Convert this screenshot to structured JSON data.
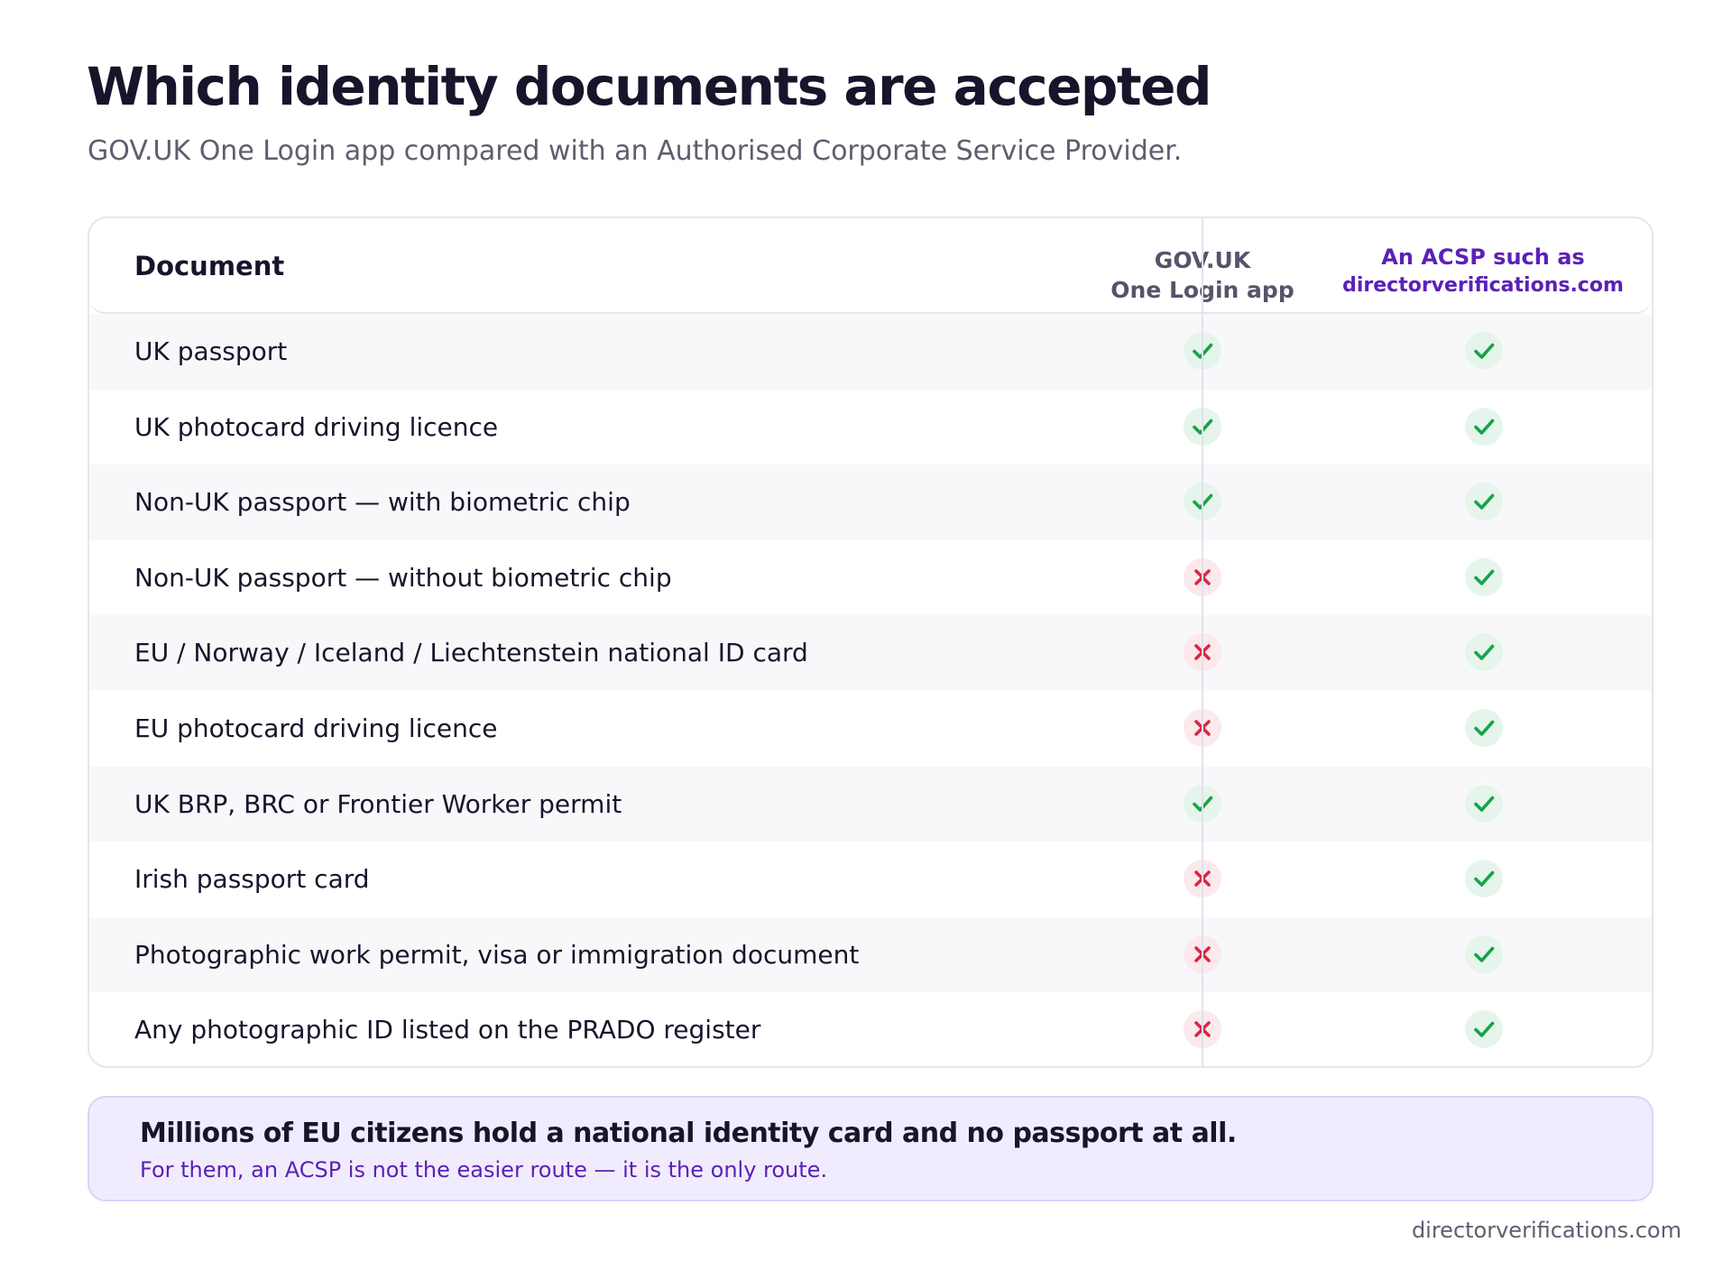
{
  "title": "Which identity documents are accepted",
  "subtitle": "GOV.UK One Login app compared with an Authorised Corporate Service Provider.",
  "table": {
    "headers": {
      "document": "Document",
      "gov_line1": "GOV.UK",
      "gov_line2": "One Login app",
      "acsp_line1": "An ACSP such as",
      "acsp_line2": "directorverifications.com"
    },
    "rows": [
      {
        "document": "UK passport",
        "gov": "yes",
        "acsp": "yes"
      },
      {
        "document": "UK photocard driving licence",
        "gov": "yes",
        "acsp": "yes"
      },
      {
        "document": "Non-UK passport — with biometric chip",
        "gov": "yes",
        "acsp": "yes"
      },
      {
        "document": "Non-UK passport — without biometric chip",
        "gov": "no",
        "acsp": "yes"
      },
      {
        "document": "EU / Norway / Iceland / Liechtenstein national ID card",
        "gov": "no",
        "acsp": "yes"
      },
      {
        "document": "EU photocard driving licence",
        "gov": "no",
        "acsp": "yes"
      },
      {
        "document": "UK BRP, BRC or Frontier Worker permit",
        "gov": "yes",
        "acsp": "yes"
      },
      {
        "document": "Irish passport card",
        "gov": "no",
        "acsp": "yes"
      },
      {
        "document": "Photographic work permit, visa or immigration document",
        "gov": "no",
        "acsp": "yes"
      },
      {
        "document": "Any photographic ID listed on the PRADO register",
        "gov": "no",
        "acsp": "yes"
      }
    ]
  },
  "callout": {
    "title": "Millions of EU citizens hold a national identity card and no passport at all.",
    "subtitle": "For them, an ACSP is not the easier route — it is the only route."
  },
  "footer": "directorverifications.com",
  "colors": {
    "accent": "#5b21b6",
    "check": "#16a34a",
    "cross": "#dc2646",
    "callout_bg": "#f1ecfd"
  },
  "icons": {
    "yes": "check-icon",
    "no": "cross-icon"
  }
}
